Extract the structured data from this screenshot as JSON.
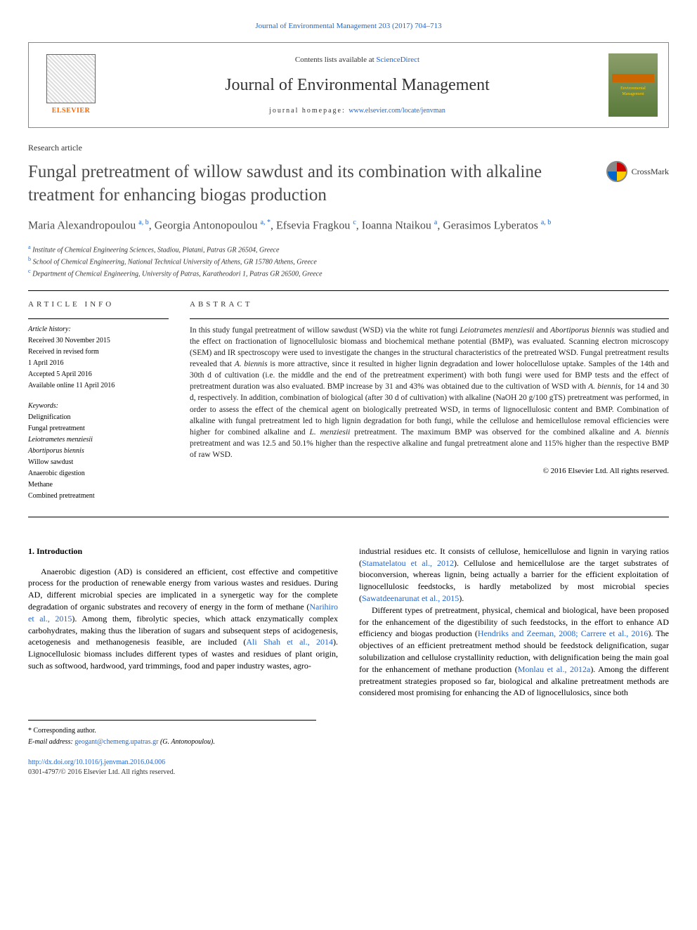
{
  "header": {
    "citation": "Journal of Environmental Management 203 (2017) 704–713",
    "contents_prefix": "Contents lists available at ",
    "contents_link": "ScienceDirect",
    "journal_name": "Journal of Environmental Management",
    "homepage_prefix": "journal homepage: ",
    "homepage_url": "www.elsevier.com/locate/jenvman",
    "publisher": "ELSEVIER",
    "cover_text": "Environmental Management"
  },
  "article": {
    "type": "Research article",
    "title": "Fungal pretreatment of willow sawdust and its combination with alkaline treatment for enhancing biogas production",
    "crossmark": "CrossMark",
    "authors_html": "Maria Alexandropoulou <sup>a, b</sup>, Georgia Antonopoulou <sup>a, *</sup>, Efsevia Fragkou <sup>c</sup>, Ioanna Ntaikou <sup>a</sup>, Gerasimos Lyberatos <sup>a, b</sup>",
    "affiliations": [
      {
        "sup": "a",
        "text": "Institute of Chemical Engineering Sciences, Stadiou, Platani, Patras GR 26504, Greece"
      },
      {
        "sup": "b",
        "text": "School of Chemical Engineering, National Technical University of Athens, GR 15780 Athens, Greece"
      },
      {
        "sup": "c",
        "text": "Department of Chemical Engineering, University of Patras, Karatheodori 1, Patras GR 26500, Greece"
      }
    ]
  },
  "info": {
    "heading": "ARTICLE INFO",
    "history_label": "Article history:",
    "history": [
      "Received 30 November 2015",
      "Received in revised form",
      "1 April 2016",
      "Accepted 5 April 2016",
      "Available online 11 April 2016"
    ],
    "keywords_label": "Keywords:",
    "keywords": [
      {
        "text": "Delignification",
        "italic": false
      },
      {
        "text": "Fungal pretreatment",
        "italic": false
      },
      {
        "text": "Leiotrametes menziesii",
        "italic": true
      },
      {
        "text": "Abortiporus biennis",
        "italic": true
      },
      {
        "text": "Willow sawdust",
        "italic": false
      },
      {
        "text": "Anaerobic digestion",
        "italic": false
      },
      {
        "text": "Methane",
        "italic": false
      },
      {
        "text": "Combined pretreatment",
        "italic": false
      }
    ]
  },
  "abstract": {
    "heading": "ABSTRACT",
    "text": "In this study fungal pretreatment of willow sawdust (WSD) via the white rot fungi <span class=\"ital\">Leiotrametes menziesii</span> and <span class=\"ital\">Abortiporus biennis</span> was studied and the effect on fractionation of lignocellulosic biomass and biochemical methane potential (BMP), was evaluated. Scanning electron microscopy (SEM) and IR spectroscopy were used to investigate the changes in the structural characteristics of the pretreated WSD. Fungal pretreatment results revealed that <span class=\"ital\">A. biennis</span> is more attractive, since it resulted in higher lignin degradation and lower holocellulose uptake. Samples of the 14th and 30th d of cultivation (i.e. the middle and the end of the pretreatment experiment) with both fungi were used for BMP tests and the effect of pretreatment duration was also evaluated. BMP increase by 31 and 43% was obtained due to the cultivation of WSD with <span class=\"ital\">A. biennis</span>, for 14 and 30 d, respectively. In addition, combination of biological (after 30 d of cultivation) with alkaline (NaOH 20 g/100 gTS) pretreatment was performed, in order to assess the effect of the chemical agent on biologically pretreated WSD, in terms of lignocellulosic content and BMP. Combination of alkaline with fungal pretreatment led to high lignin degradation for both fungi, while the cellulose and hemicellulose removal efficiencies were higher for combined alkaline and <span class=\"ital\">L. menziesii</span> pretreatment. The maximum BMP was observed for the combined alkaline and <span class=\"ital\">A. biennis</span> pretreatment and was 12.5 and 50.1% higher than the respective alkaline and fungal pretreatment alone and 115% higher than the respective BMP of raw WSD.",
    "copyright": "© 2016 Elsevier Ltd. All rights reserved."
  },
  "body": {
    "section_heading": "1. Introduction",
    "col1_p1": "Anaerobic digestion (AD) is considered an efficient, cost effective and competitive process for the production of renewable energy from various wastes and residues. During AD, different microbial species are implicated in a synergetic way for the complete degradation of organic substrates and recovery of energy in the form of methane (<span class=\"ref-link\">Narihiro et al., 2015</span>). Among them, fibrolytic species, which attack enzymatically complex carbohydrates, making thus the liberation of sugars and subsequent steps of acidogenesis, acetogenesis and methanogenesis feasible, are included (<span class=\"ref-link\">Ali Shah et al., 2014</span>). Lignocellulosic biomass includes different types of wastes and residues of plant origin, such as softwood, hardwood, yard trimmings, food and paper industry wastes, agro-",
    "col2_p1": "industrial residues etc. It consists of cellulose, hemicellulose and lignin in varying ratios (<span class=\"ref-link\">Stamatelatou et al., 2012</span>). Cellulose and hemicellulose are the target substrates of bioconversion, whereas lignin, being actually a barrier for the efficient exploitation of lignocellulosic feedstocks, is hardly metabolized by most microbial species (<span class=\"ref-link\">Sawatdeenarunat et al., 2015</span>).",
    "col2_p2": "Different types of pretreatment, physical, chemical and biological, have been proposed for the enhancement of the digestibility of such feedstocks, in the effort to enhance AD efficiency and biogas production (<span class=\"ref-link\">Hendriks and Zeeman, 2008; Carrere et al., 2016</span>). The objectives of an efficient pretreatment method should be feedstock delignification, sugar solubilization and cellulose crystallinity reduction, with delignification being the main goal for the enhancement of methane production (<span class=\"ref-link\">Monlau et al., 2012a</span>). Among the different pretreatment strategies proposed so far, biological and alkaline pretreatment methods are considered most promising for enhancing the AD of lignocellulosics, since both"
  },
  "footer": {
    "corresponding": "* Corresponding author.",
    "email_label": "E-mail address: ",
    "email": "geogant@chemeng.upatras.gr",
    "email_name": " (G. Antonopoulou).",
    "doi": "http://dx.doi.org/10.1016/j.jenvman.2016.04.006",
    "issn": "0301-4797/© 2016 Elsevier Ltd. All rights reserved."
  }
}
